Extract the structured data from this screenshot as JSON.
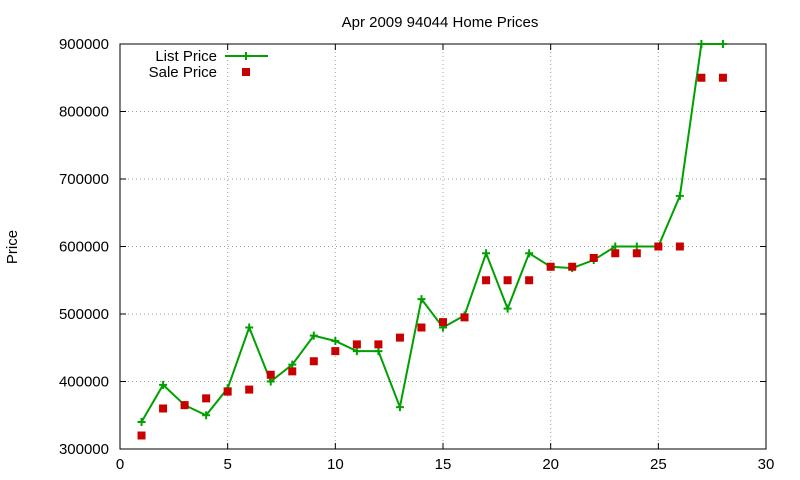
{
  "chart_data": {
    "type": "line",
    "title": "Apr 2009 94044 Home Prices",
    "xlabel": "",
    "ylabel": "Price",
    "xlim": [
      0,
      30
    ],
    "ylim": [
      300000,
      900000
    ],
    "xticks": [
      0,
      5,
      10,
      15,
      20,
      25,
      30
    ],
    "yticks": [
      300000,
      400000,
      500000,
      600000,
      700000,
      800000,
      900000
    ],
    "grid": true,
    "legend_position": "top-left",
    "series": [
      {
        "name": "List Price",
        "style": "line+plus",
        "color": "#00a000",
        "points": [
          [
            1,
            340000
          ],
          [
            2,
            395000
          ],
          [
            3,
            365000
          ],
          [
            4,
            350000
          ],
          [
            5,
            390000
          ],
          [
            6,
            480000
          ],
          [
            7,
            400000
          ],
          [
            8,
            425000
          ],
          [
            9,
            468000
          ],
          [
            10,
            460000
          ],
          [
            11,
            445000
          ],
          [
            12,
            445000
          ],
          [
            13,
            362000
          ],
          [
            14,
            522000
          ],
          [
            15,
            480000
          ],
          [
            16,
            498000
          ],
          [
            17,
            590000
          ],
          [
            18,
            508000
          ],
          [
            19,
            590000
          ],
          [
            20,
            570000
          ],
          [
            21,
            568000
          ],
          [
            22,
            580000
          ],
          [
            23,
            600000
          ],
          [
            24,
            600000
          ],
          [
            25,
            600000
          ],
          [
            26,
            675000
          ],
          [
            27,
            900000
          ],
          [
            28,
            900000
          ]
        ]
      },
      {
        "name": "Sale Price",
        "style": "square",
        "color": "#c80000",
        "points": [
          [
            1,
            320000
          ],
          [
            2,
            360000
          ],
          [
            3,
            365000
          ],
          [
            4,
            375000
          ],
          [
            5,
            385000
          ],
          [
            6,
            388000
          ],
          [
            7,
            410000
          ],
          [
            8,
            415000
          ],
          [
            9,
            430000
          ],
          [
            10,
            445000
          ],
          [
            11,
            455000
          ],
          [
            12,
            455000
          ],
          [
            13,
            465000
          ],
          [
            14,
            480000
          ],
          [
            15,
            488000
          ],
          [
            16,
            495000
          ],
          [
            17,
            550000
          ],
          [
            18,
            550000
          ],
          [
            19,
            550000
          ],
          [
            20,
            570000
          ],
          [
            21,
            570000
          ],
          [
            22,
            583000
          ],
          [
            23,
            590000
          ],
          [
            24,
            590000
          ],
          [
            25,
            600000
          ],
          [
            26,
            600000
          ],
          [
            27,
            850000
          ],
          [
            28,
            850000
          ]
        ]
      }
    ]
  }
}
